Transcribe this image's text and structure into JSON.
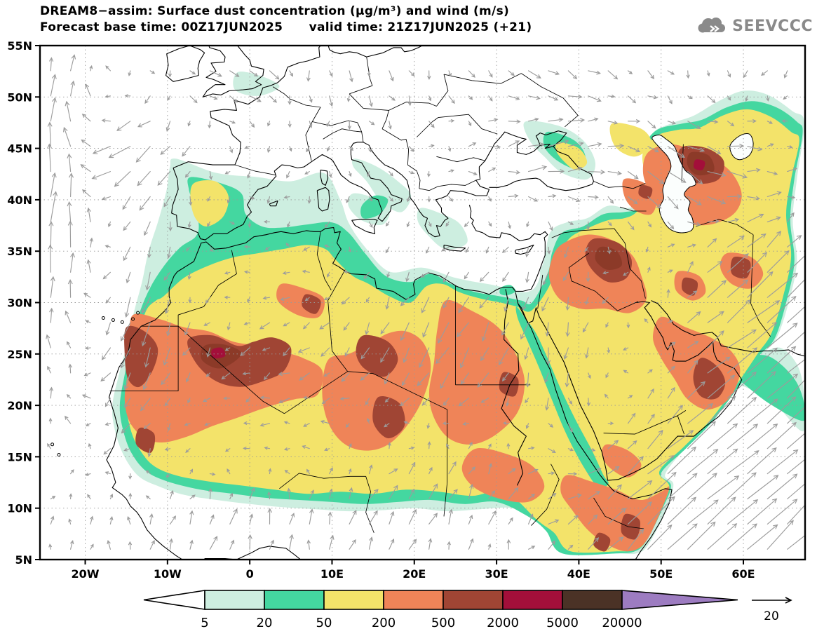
{
  "header": {
    "title_line1": "DREAM8−assim: Surface dust concentration (μg/m³) and wind (m/s)",
    "title_line2": "Forecast base time: 00Z17JUN2025      valid time: 21Z17JUN2025 (+21)",
    "logo_text": "SEEVCCC"
  },
  "map": {
    "lat_labels": [
      "55N",
      "50N",
      "45N",
      "40N",
      "35N",
      "30N",
      "25N",
      "20N",
      "15N",
      "10N",
      "5N"
    ],
    "lon_labels": [
      "20W",
      "10W",
      "0",
      "10E",
      "20E",
      "30E",
      "40E",
      "50E",
      "60E"
    ]
  },
  "legend": {
    "values": [
      "5",
      "20",
      "50",
      "200",
      "500",
      "2000",
      "5000",
      "20000"
    ],
    "colors": [
      "#ffffff",
      "#cdeee0",
      "#44d7a0",
      "#f3e36a",
      "#ef8458",
      "#a04534",
      "#a30f3a",
      "#4b3226",
      "#9d7cc1"
    ],
    "reference_wind_label": "20"
  },
  "chart_data": {
    "type": "heatmap",
    "subtype": "filled_contour_map_with_wind_vectors",
    "title": "DREAM8−assim: Surface dust concentration (μg/m³) and wind (m/s)",
    "forecast_base_time": "00Z17JUN2025",
    "valid_time": "21Z17JUN2025",
    "forecast_hour": "+21",
    "variable": "Surface dust concentration",
    "units": "μg/m³",
    "wind_units": "m/s",
    "contour_levels": [
      5,
      20,
      50,
      200,
      500,
      2000,
      5000,
      20000
    ],
    "level_colors": [
      "#ffffff",
      "#cdeee0",
      "#44d7a0",
      "#f3e36a",
      "#ef8458",
      "#a04534",
      "#a30f3a",
      "#4b3226",
      "#9d7cc1"
    ],
    "lat_range": [
      5,
      55
    ],
    "lon_range": [
      -25.5,
      67.5
    ],
    "lat_ticks": [
      55,
      50,
      45,
      40,
      35,
      30,
      25,
      20,
      15,
      10,
      5
    ],
    "lon_ticks": [
      -20,
      -10,
      0,
      10,
      20,
      30,
      40,
      50,
      60
    ],
    "grid": "dotted graticule, 5° latitude × 10° longitude",
    "wind_reference_ms": 20,
    "background_dust_sahara": "50–200 μg/m³ (yellow) over Sahara and Arabia",
    "high_dust_regions": [
      {
        "region": "Western Sahara / N Mauritania coast",
        "approx_range": "500–2000"
      },
      {
        "region": "N Mali / S Algeria border",
        "approx_range": "2000–5000 core"
      },
      {
        "region": "S Libya / N Chad (Bodélé)",
        "approx_range": "500–2000"
      },
      {
        "region": "Nile valley, S Egypt",
        "approx_range": "500–2000"
      },
      {
        "region": "Iraq / W Iran (Mesopotamia)",
        "approx_range": "2000–5000 core"
      },
      {
        "region": "NE of Caspian Sea (Kazakhstan/Uzbekistan)",
        "approx_range": "2000–5000 core"
      },
      {
        "region": "Oman / SE Arabia coast",
        "approx_range": "500–2000"
      },
      {
        "region": "Horn of Africa (Somalia/Djibouti)",
        "approx_range": "500–2000"
      }
    ],
    "low_dust_regions": [
      "N Atlantic",
      "most of Europe",
      "central-east Mediterranean",
      "Anatolia",
      "SE Indian-Ocean corner"
    ],
    "wind_features": [
      "strong northward flow at western Atlantic edge",
      "southward flow along Morocco / Canary coast",
      "weak southward drift over Europe",
      "eastward flow over the Black Sea region",
      "easterly trade flow over the central Sahara",
      "southwest monsoon southerlies over Sahel / Gulf of Guinea",
      "strong NE-directed Somali jet over the Arabian Sea"
    ]
  }
}
